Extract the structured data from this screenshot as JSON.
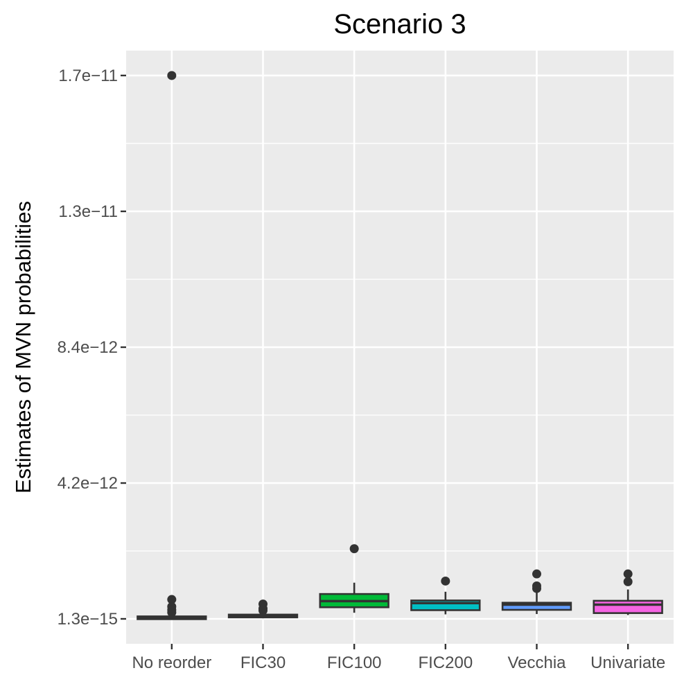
{
  "chart_data": {
    "type": "box",
    "title": "Scenario 3",
    "xlabel": "",
    "ylabel": "Estimates of MVN probabilities",
    "ylim": [
      -7.7e-13,
      1.757e-11
    ],
    "yticks": [
      {
        "value": 1.3e-15,
        "label": "1.3e−15"
      },
      {
        "value": 4.2e-12,
        "label": "4.2e−12"
      },
      {
        "value": 8.4e-12,
        "label": "8.4e−12"
      },
      {
        "value": 1.26e-11,
        "label": "1.3e−11"
      },
      {
        "value": 1.68e-11,
        "label": "1.7e−11"
      }
    ],
    "categories": [
      "No reorder",
      "FIC30",
      "FIC100",
      "FIC200",
      "Vecchia",
      "Univariate"
    ],
    "series": [
      {
        "category": "No reorder",
        "color": "#F8766D",
        "min": 1.3e-15,
        "q1": 2e-14,
        "median": 3e-14,
        "q3": 5e-14,
        "max": 9e-14,
        "outliers": [
          1.68e-11,
          6e-13,
          3.8e-13,
          2.8e-13,
          2e-13
        ]
      },
      {
        "category": "FIC30",
        "color": "#B79F00",
        "min": 2e-14,
        "q1": 6e-14,
        "median": 8e-14,
        "q3": 1.2e-13,
        "max": 1.6e-13,
        "outliers": [
          4.6e-13,
          3.2e-13,
          2.6e-13
        ]
      },
      {
        "category": "FIC100",
        "color": "#00BA38",
        "min": 1.9e-13,
        "q1": 3.6e-13,
        "median": 5.5e-13,
        "q3": 7.7e-13,
        "max": 1.12e-12,
        "outliers": [
          2.17e-12
        ]
      },
      {
        "category": "FIC200",
        "color": "#00BFC4",
        "min": 1.4e-13,
        "q1": 2.7e-13,
        "median": 4.9e-13,
        "q3": 5.7e-13,
        "max": 8.4e-13,
        "outliers": [
          1.17e-12
        ]
      },
      {
        "category": "Vecchia",
        "color": "#619CFF",
        "min": 1.5e-13,
        "q1": 2.8e-13,
        "median": 4.4e-13,
        "q3": 5e-13,
        "max": 8.1e-13,
        "outliers": [
          1.39e-12,
          1.02e-12,
          9.4e-13
        ]
      },
      {
        "category": "Univariate",
        "color": "#F564E3",
        "min": 1.2e-13,
        "q1": 1.8e-13,
        "median": 4.4e-13,
        "q3": 5.6e-13,
        "max": 9.1e-13,
        "outliers": [
          1.39e-12,
          1.15e-12
        ]
      }
    ],
    "grid": true,
    "legend": "none"
  }
}
